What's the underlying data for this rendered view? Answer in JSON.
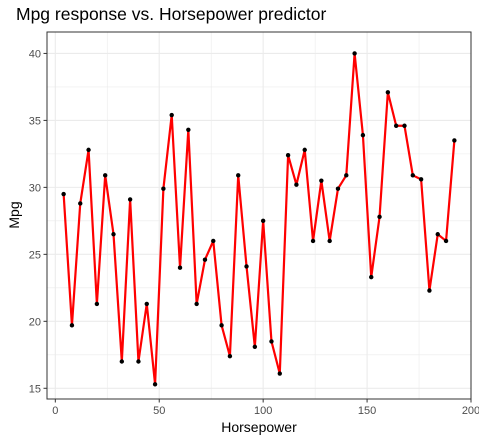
{
  "chart_data": {
    "type": "line",
    "title": "Mpg response vs. Horsepower predictor",
    "xlabel": "Horsepower",
    "ylabel": "Mpg",
    "xlim": [
      -4,
      200
    ],
    "ylim": [
      14.2,
      41.6
    ],
    "xticks": [
      0,
      50,
      100,
      150,
      200
    ],
    "yticks": [
      15,
      20,
      25,
      30,
      35,
      40
    ],
    "grid": true,
    "legend": "none",
    "colors": {
      "line": "#ff0000",
      "point": "#000000",
      "grid": "#ebebeb",
      "border": "#333333"
    },
    "series": [
      {
        "x": [
          4,
          8,
          12,
          16,
          20,
          24,
          28,
          32,
          36,
          40,
          44,
          48,
          52,
          56,
          60,
          64,
          68,
          72,
          76,
          80,
          84,
          88,
          92,
          96,
          100,
          104,
          108,
          112,
          116,
          120,
          124,
          128,
          132,
          136,
          140,
          144,
          148,
          152,
          156,
          160,
          164,
          168,
          172,
          176,
          180,
          184,
          188,
          192
        ],
        "y": [
          29.5,
          19.7,
          28.8,
          32.8,
          21.3,
          30.9,
          26.5,
          17.0,
          29.1,
          17.0,
          21.3,
          15.3,
          29.9,
          35.4,
          24.0,
          34.3,
          21.3,
          24.6,
          26.0,
          19.7,
          17.4,
          30.9,
          24.1,
          18.1,
          27.5,
          18.5,
          16.1,
          32.4,
          30.2,
          32.8,
          26.0,
          30.5,
          26.0,
          29.9,
          30.9,
          40.0,
          33.9,
          23.3,
          27.8,
          37.1,
          34.6,
          34.6,
          30.9,
          30.6,
          22.3,
          26.5,
          26.0,
          33.5
        ]
      }
    ]
  }
}
